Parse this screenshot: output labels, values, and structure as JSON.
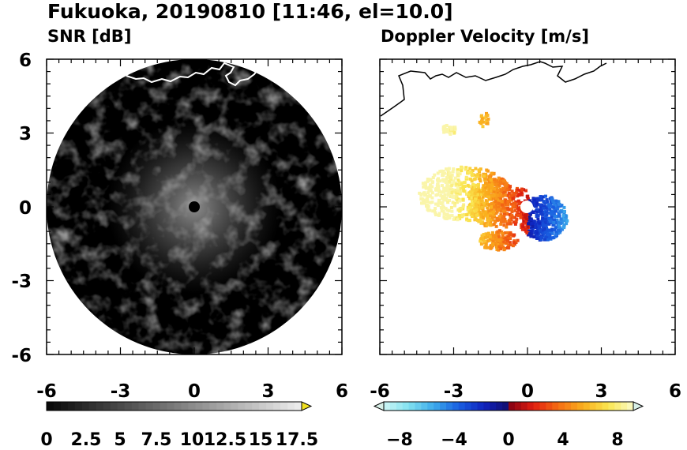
{
  "title": "Fukuoka, 20190810 [11:46, el=10.0]",
  "panels": {
    "left": {
      "title": "SNR [dB]"
    },
    "right": {
      "title": "Doppler Velocity [m/s]"
    }
  },
  "colors": {
    "snr_background": "#000000",
    "coastline": "#ffffff",
    "coastline_right": "#000000",
    "colorbar_end_snr": "#f0e020",
    "colorbar_end_vel": "#d8f0e8"
  },
  "chart_data": [
    {
      "type": "heatmap",
      "name": "snr",
      "x_ticks": [
        -6,
        -3,
        0,
        3,
        6
      ],
      "y_ticks": [
        -6,
        -3,
        0,
        3,
        6
      ],
      "xlim": [
        -6,
        6
      ],
      "ylim": [
        -6,
        6
      ],
      "radar_range": 6,
      "colorbar": {
        "range": [
          0,
          18
        ],
        "ticks": [
          "0",
          "2.5",
          "5",
          "7.5",
          "10",
          "12.5",
          "15",
          "17.5"
        ],
        "extend": "max"
      }
    },
    {
      "type": "heatmap",
      "name": "doppler_velocity",
      "x_ticks": [
        -6,
        -3,
        0,
        3,
        6
      ],
      "y_ticks": [
        -6,
        -3,
        0,
        3,
        6
      ],
      "xlim": [
        -6,
        6
      ],
      "ylim": [
        -6,
        6
      ],
      "colorbar": {
        "range": [
          -10,
          10
        ],
        "ticks": [
          "−8",
          "−4",
          "0",
          "4",
          "8"
        ],
        "extend": "both"
      }
    }
  ]
}
